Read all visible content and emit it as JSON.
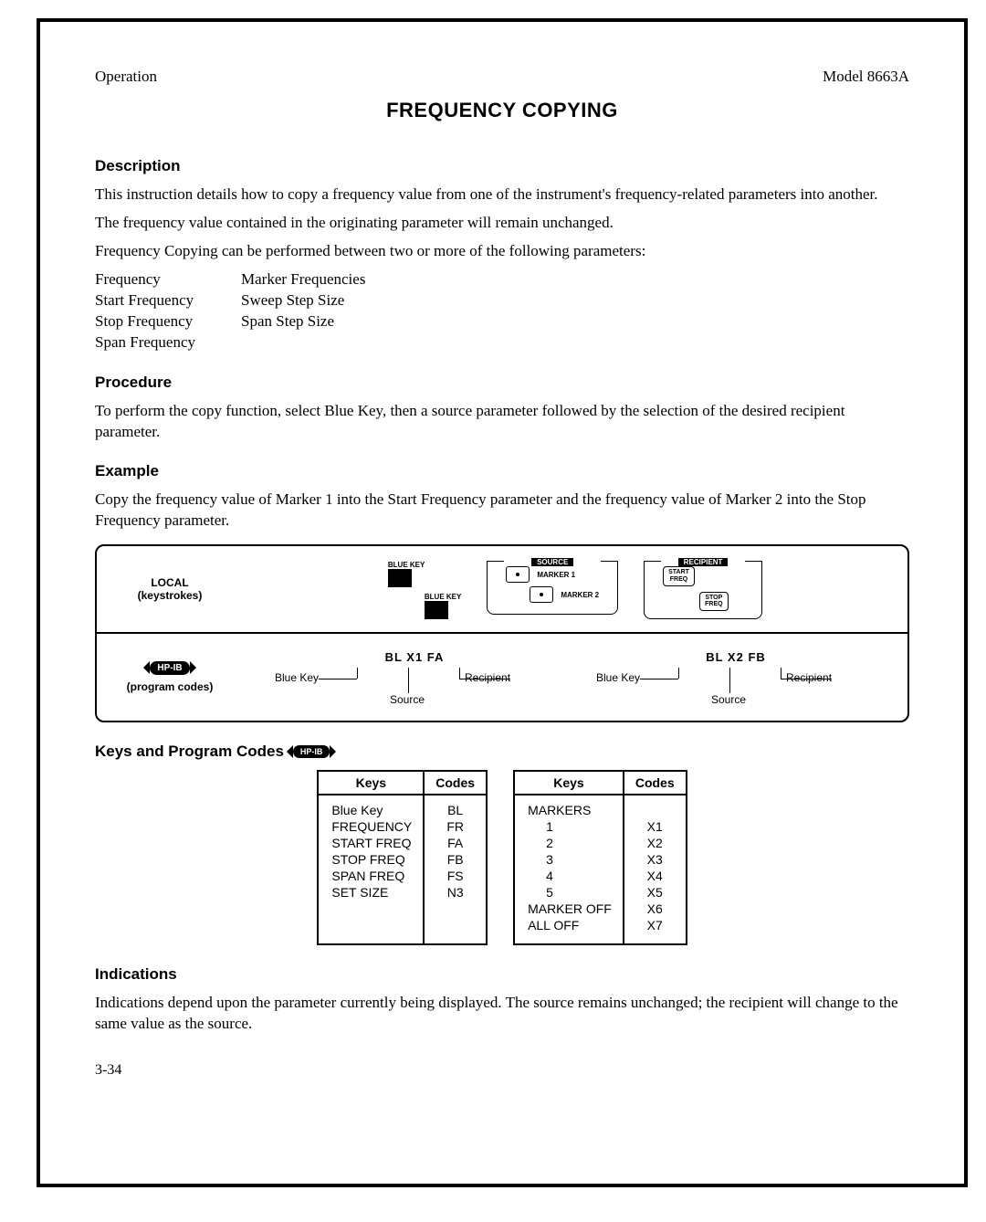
{
  "header": {
    "left": "Operation",
    "right": "Model 8663A"
  },
  "title": "FREQUENCY COPYING",
  "sections": {
    "description": {
      "heading": "Description",
      "p1": "This instruction details how to copy a frequency value from one of the instrument's frequency-related parameters into another.",
      "p2": "The frequency value contained in the originating parameter will remain unchanged.",
      "p3": "Frequency Copying can be performed between two or more of the following parameters:",
      "params_left": "Frequency\nStart Frequency\nStop Frequency\nSpan Frequency",
      "params_right": "Marker Frequencies\nSweep Step Size\nSpan Step Size"
    },
    "procedure": {
      "heading": "Procedure",
      "p1": "To perform the copy function, select Blue Key, then a source parameter followed by the selection of the desired recipient parameter."
    },
    "example": {
      "heading": "Example",
      "p1": "Copy the frequency value of Marker 1 into the Start Frequency parameter and the frequency value of Marker 2 into the Stop Frequency parameter.",
      "local_label": "LOCAL",
      "local_sub": "(keystrokes)",
      "hpib_label": "HP-IB",
      "hpib_sub": "(program codes)",
      "bluekey_label": "BLUE KEY",
      "source_label": "SOURCE",
      "recipient_label": "RECIPIENT",
      "marker1": "MARKER 1",
      "marker2": "MARKER 2",
      "start_freq": "START\nFREQ",
      "stop_freq": "STOP\nFREQ",
      "pc1": {
        "code": "BL X1 FA",
        "blue": "Blue Key",
        "source": "Source",
        "recipient": "Recipient"
      },
      "pc2": {
        "code": "BL X2 FB",
        "blue": "Blue Key",
        "source": "Source",
        "recipient": "Recipient"
      }
    },
    "codes": {
      "heading": "Keys and Program Codes",
      "th_keys": "Keys",
      "th_codes": "Codes",
      "table1": {
        "rows": [
          [
            "Blue Key",
            "BL"
          ],
          [
            "FREQUENCY",
            "FR"
          ],
          [
            "START FREQ",
            "FA"
          ],
          [
            "STOP FREQ",
            "FB"
          ],
          [
            "SPAN FREQ",
            "FS"
          ],
          [
            "SET SIZE",
            "N3"
          ]
        ]
      },
      "table2": {
        "header_row": "MARKERS",
        "rows": [
          [
            "1",
            "X1"
          ],
          [
            "2",
            "X2"
          ],
          [
            "3",
            "X3"
          ],
          [
            "4",
            "X4"
          ],
          [
            "5",
            "X5"
          ],
          [
            "MARKER OFF",
            "X6"
          ],
          [
            "ALL OFF",
            "X7"
          ]
        ]
      }
    },
    "indications": {
      "heading": "Indications",
      "p1": "Indications depend upon the parameter currently being displayed. The source remains unchanged; the recipient will change to the same value as the source."
    }
  },
  "footer": "3-34",
  "colors": {
    "ink": "#000000",
    "paper": "#ffffff"
  }
}
